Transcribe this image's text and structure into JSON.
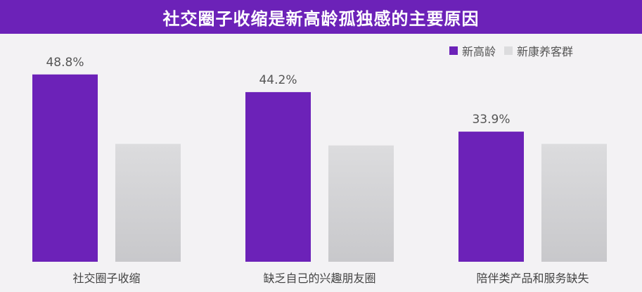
{
  "colors": {
    "title_bg": "#6c22b8",
    "series_primary": "#6c22b8",
    "series_secondary_top": "#dcdcde",
    "series_secondary_bottom": "#c8c8cb"
  },
  "chart_data": {
    "type": "bar",
    "title": "社交圈子收缩是新高龄孤独感的主要原因",
    "categories": [
      "社交圈子收缩",
      "缺乏自己的兴趣朋友圈",
      "陪伴类产品和服务缺失"
    ],
    "series": [
      {
        "name": "新高龄",
        "values": [
          48.8,
          44.2,
          33.9
        ],
        "value_labels": [
          "48.8%",
          "44.2%",
          "33.9%"
        ]
      },
      {
        "name": "新康养客群",
        "values": [
          30.7,
          30.3,
          30.7
        ]
      }
    ],
    "ylim": [
      0,
      55
    ],
    "grid": false,
    "legend_position": "top-right",
    "xlabel": "",
    "ylabel": ""
  }
}
